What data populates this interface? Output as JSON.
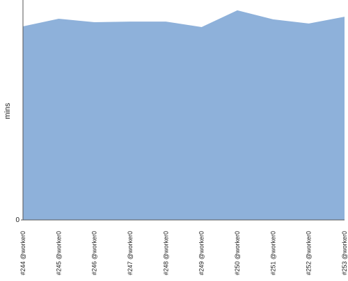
{
  "chart_data": {
    "type": "area",
    "y_label": "mins",
    "categories": [
      "#244 @worker0",
      "#245 @worker0",
      "#246 @worker0",
      "#247 @worker0",
      "#248 @worker0",
      "#249 @worker0",
      "#250 @worker0",
      "#251 @worker0",
      "#252 @worker0",
      "#253 @worker0"
    ],
    "values": [
      88,
      91.5,
      89.9,
      90.2,
      90.2,
      87.7,
      95.3,
      91.2,
      89.3,
      92.4
    ],
    "color": "#8eb1da",
    "ylim": [
      0,
      100
    ],
    "yticks": [
      0
    ]
  }
}
